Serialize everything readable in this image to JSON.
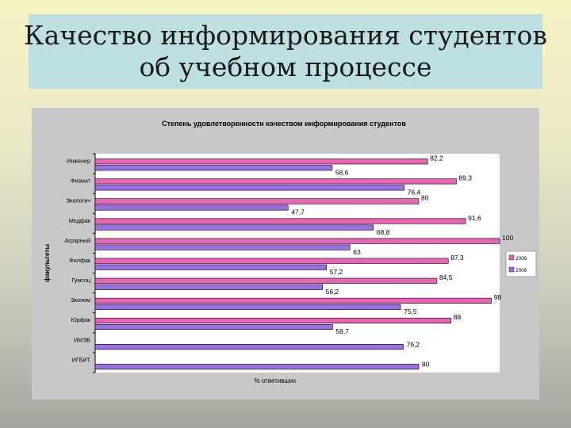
{
  "slide": {
    "title_line1": "Качество информирования студентов",
    "title_line2": "об учебном процессе"
  },
  "chart_data": {
    "type": "bar",
    "orientation": "horizontal",
    "title": "Степень удовлетворенности качеством информирования студентов",
    "xlabel": "% ответивших",
    "ylabel": "факультеты",
    "xlim": [
      0,
      100
    ],
    "grid": false,
    "legend_position": "right",
    "categories": [
      "Инженер",
      "Физмат",
      "Экологич",
      "Медфак",
      "Аграрный",
      "Филфак",
      "Гумсоц",
      "Эконом",
      "Юрфак",
      "ИМЭБ",
      "ИГБИТ"
    ],
    "value_labels_2006": [
      "82,2",
      "89,3",
      "80",
      "91,6",
      "100",
      "87,3",
      "84,5",
      "98",
      "88",
      "",
      ""
    ],
    "value_labels_2008": [
      "58,6",
      "76,4",
      "47,7",
      "68,8",
      "63",
      "57,2",
      "56,2",
      "75,5",
      "58,7",
      "76,2",
      "80"
    ],
    "series": [
      {
        "name": "2006",
        "color": "#ee62b6",
        "values": [
          82.2,
          89.3,
          80,
          91.6,
          100,
          87.3,
          84.5,
          98,
          88,
          null,
          null
        ]
      },
      {
        "name": "2008",
        "color": "#9a6ee6",
        "values": [
          58.6,
          76.4,
          47.7,
          68.8,
          63,
          57.2,
          56.2,
          75.5,
          58.7,
          76.2,
          80
        ]
      }
    ]
  }
}
